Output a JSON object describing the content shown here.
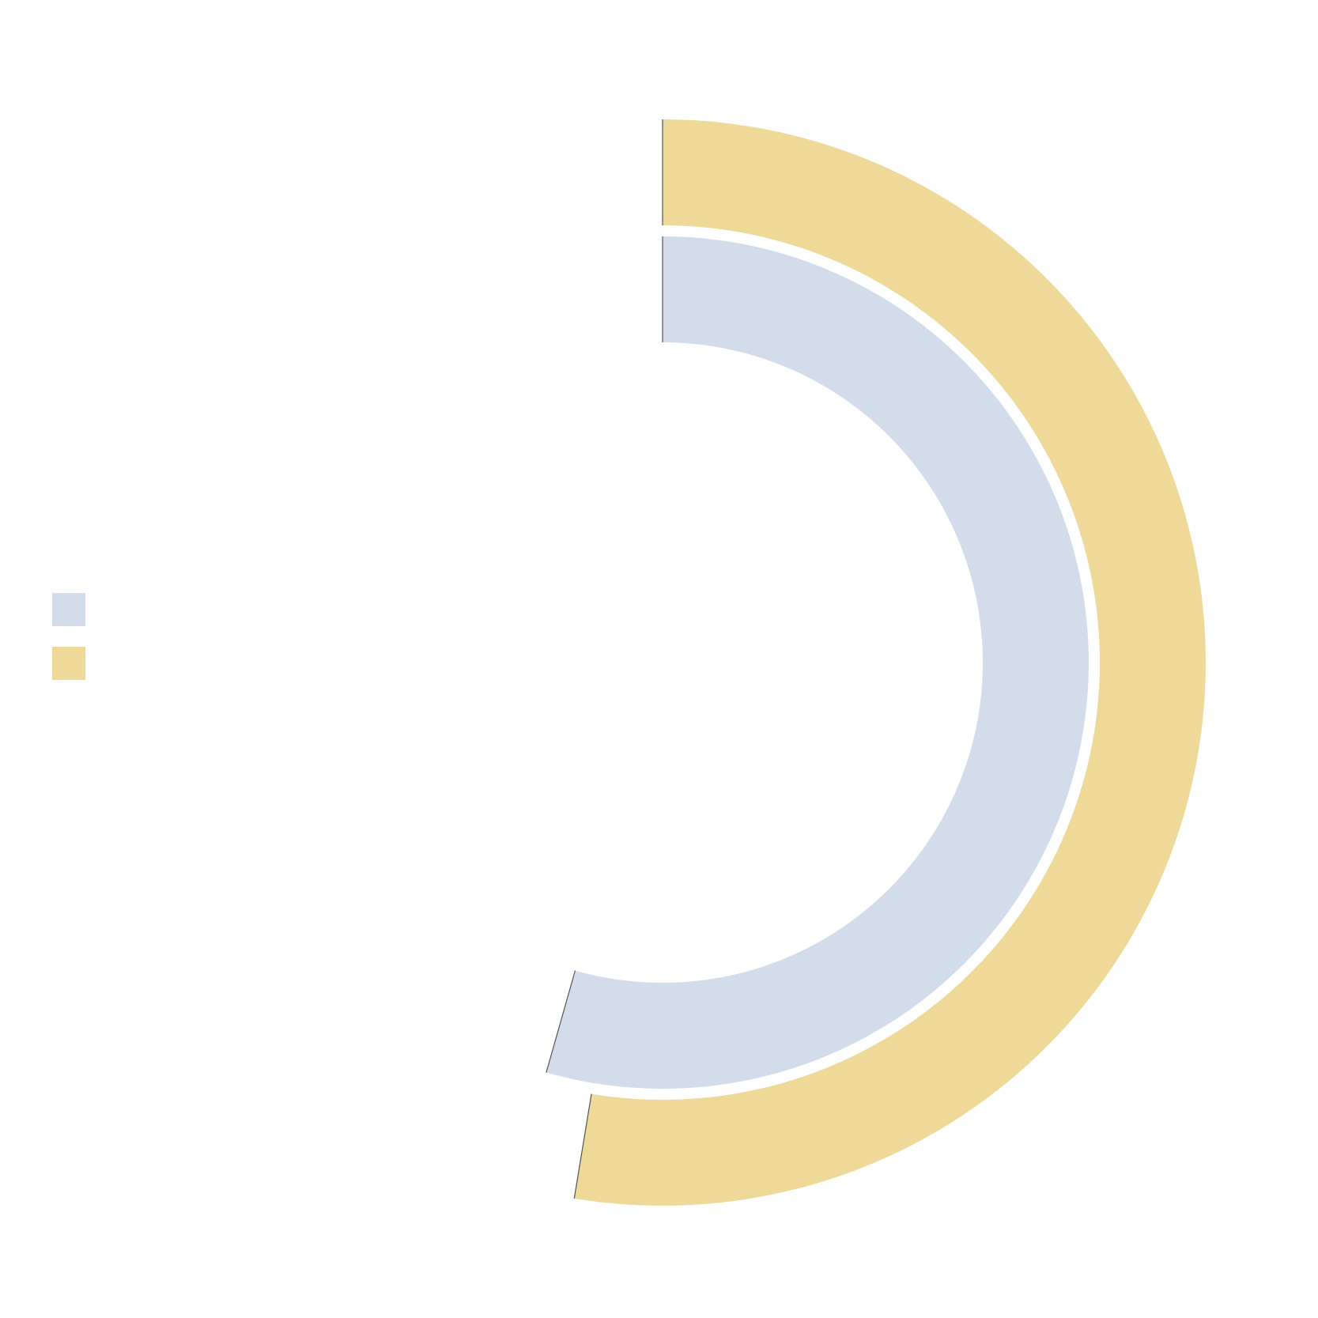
{
  "chart_data": {
    "type": "radial-bar",
    "title": "",
    "max_value": 100,
    "series": [
      {
        "value": 54.4,
        "color": "#d3dcea",
        "ring": "inner"
      },
      {
        "value": 52.6,
        "color": "#eed998",
        "ring": "outer"
      }
    ],
    "legend": {
      "placement": "middle-left",
      "entries": [
        {
          "color": "#d3dcea"
        },
        {
          "color": "#eed998"
        }
      ]
    }
  }
}
